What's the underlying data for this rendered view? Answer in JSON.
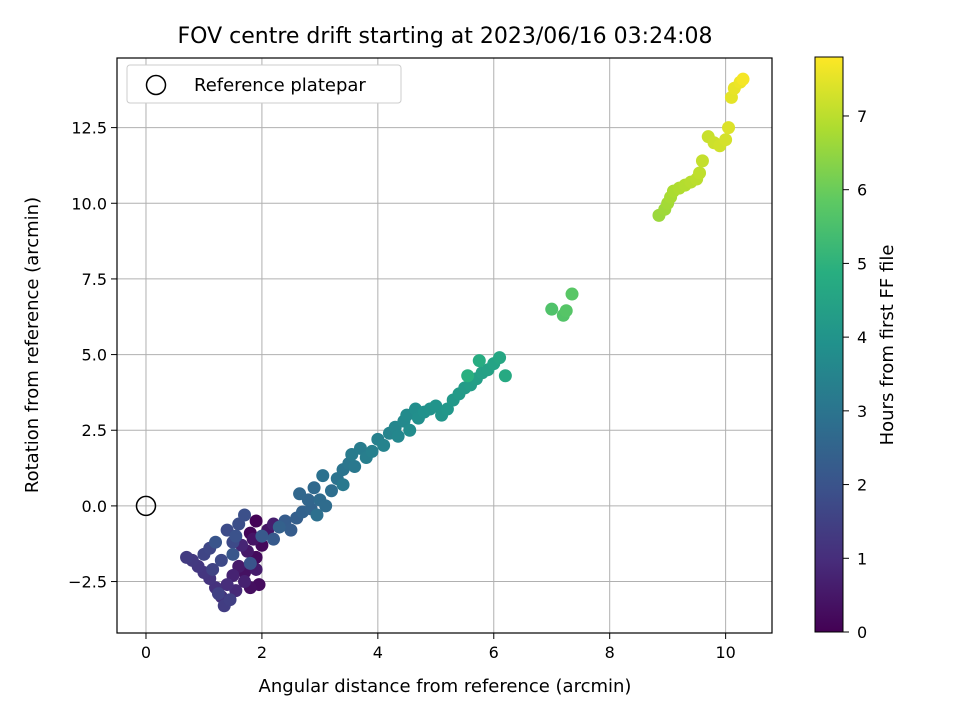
{
  "chart_data": {
    "type": "scatter",
    "title": "FOV centre drift starting at 2023/06/16 03:24:08",
    "xlabel": "Angular distance from reference (arcmin)",
    "ylabel": "Rotation from reference (arcmin)",
    "xlim": [
      -0.5,
      10.8
    ],
    "ylim": [
      -4.2,
      14.8
    ],
    "xticks": [
      0,
      2,
      4,
      6,
      8,
      10
    ],
    "xtick_labels": [
      "0",
      "2",
      "4",
      "6",
      "8",
      "10"
    ],
    "yticks": [
      -2.5,
      0,
      2.5,
      5,
      7.5,
      10,
      12.5
    ],
    "ytick_labels": [
      "−2.5",
      "0.0",
      "2.5",
      "5.0",
      "7.5",
      "10.0",
      "12.5"
    ],
    "grid": true,
    "colormap": "viridis",
    "colorbar": {
      "label": "Hours from first FF file",
      "range": [
        0,
        7.8
      ],
      "ticks": [
        0,
        1,
        2,
        3,
        4,
        5,
        6,
        7
      ],
      "tick_labels": [
        "0",
        "1",
        "2",
        "3",
        "4",
        "5",
        "6",
        "7"
      ]
    },
    "legend": {
      "placement": "top-left",
      "label": "Reference platepar"
    },
    "reference_point": {
      "x": 0,
      "y": 0
    },
    "series": [
      {
        "name": "drift",
        "points": [
          [
            1.9,
            -0.5,
            0.05
          ],
          [
            1.8,
            -0.9,
            0.1
          ],
          [
            2.0,
            -1.3,
            0.15
          ],
          [
            1.9,
            -1.7,
            0.2
          ],
          [
            1.95,
            -2.6,
            0.25
          ],
          [
            1.8,
            -2.7,
            0.3
          ],
          [
            1.7,
            -2.2,
            0.35
          ],
          [
            1.85,
            -1.1,
            0.4
          ],
          [
            2.1,
            -0.8,
            0.45
          ],
          [
            1.75,
            -1.5,
            0.5
          ],
          [
            1.6,
            -2.0,
            0.55
          ],
          [
            1.9,
            -2.1,
            0.6
          ],
          [
            2.2,
            -0.6,
            0.65
          ],
          [
            1.7,
            -2.5,
            0.7
          ],
          [
            1.5,
            -2.3,
            0.75
          ],
          [
            1.65,
            -1.3,
            0.8
          ],
          [
            1.55,
            -2.8,
            0.9
          ],
          [
            1.4,
            -2.6,
            1.0
          ],
          [
            1.3,
            -3.0,
            1.05
          ],
          [
            1.2,
            -2.7,
            1.1
          ],
          [
            1.1,
            -2.4,
            1.15
          ],
          [
            1.0,
            -2.2,
            1.2
          ],
          [
            0.9,
            -2.0,
            1.25
          ],
          [
            0.8,
            -1.8,
            1.3
          ],
          [
            0.7,
            -1.7,
            1.35
          ],
          [
            1.35,
            -3.3,
            1.4
          ],
          [
            1.45,
            -3.1,
            1.45
          ],
          [
            1.25,
            -2.9,
            1.5
          ],
          [
            1.15,
            -2.1,
            1.55
          ],
          [
            1.0,
            -1.6,
            1.6
          ],
          [
            1.1,
            -1.4,
            1.65
          ],
          [
            1.3,
            -1.8,
            1.7
          ],
          [
            1.5,
            -1.2,
            1.75
          ],
          [
            1.4,
            -0.8,
            1.8
          ],
          [
            1.6,
            -0.6,
            1.85
          ],
          [
            1.7,
            -0.3,
            1.9
          ],
          [
            1.55,
            -1.0,
            1.95
          ],
          [
            1.8,
            -1.9,
            2.0
          ],
          [
            1.2,
            -1.2,
            2.05
          ],
          [
            1.5,
            -1.6,
            2.1
          ],
          [
            2.0,
            -1.0,
            2.15
          ],
          [
            2.2,
            -1.1,
            2.2
          ],
          [
            2.4,
            -0.5,
            2.25
          ],
          [
            2.5,
            -0.8,
            2.3
          ],
          [
            2.6,
            -0.4,
            2.35
          ],
          [
            2.3,
            -0.7,
            2.4
          ],
          [
            2.7,
            -0.2,
            2.45
          ],
          [
            2.85,
            -0.1,
            2.5
          ],
          [
            2.8,
            0.2,
            2.55
          ],
          [
            2.65,
            0.4,
            2.6
          ],
          [
            2.9,
            0.6,
            2.65
          ],
          [
            3.0,
            0.2,
            2.7
          ],
          [
            3.1,
            0.0,
            2.75
          ],
          [
            3.2,
            0.5,
            2.8
          ],
          [
            2.95,
            -0.3,
            2.85
          ],
          [
            3.05,
            1.0,
            2.9
          ],
          [
            3.3,
            0.9,
            2.95
          ],
          [
            3.4,
            1.2,
            3.0
          ],
          [
            3.5,
            1.4,
            3.05
          ],
          [
            3.6,
            1.3,
            3.1
          ],
          [
            3.4,
            0.7,
            3.15
          ],
          [
            3.55,
            1.7,
            3.2
          ],
          [
            3.7,
            1.9,
            3.25
          ],
          [
            3.8,
            1.6,
            3.3
          ],
          [
            3.9,
            1.8,
            3.35
          ],
          [
            4.0,
            2.2,
            3.4
          ],
          [
            4.1,
            2.0,
            3.45
          ],
          [
            4.2,
            2.4,
            3.5
          ],
          [
            4.3,
            2.6,
            3.55
          ],
          [
            4.35,
            2.3,
            3.6
          ],
          [
            4.45,
            2.8,
            3.65
          ],
          [
            4.5,
            3.0,
            3.7
          ],
          [
            4.55,
            2.5,
            3.75
          ],
          [
            4.65,
            3.2,
            3.8
          ],
          [
            4.7,
            2.9,
            3.85
          ],
          [
            4.8,
            3.1,
            3.9
          ],
          [
            4.9,
            3.2,
            3.95
          ],
          [
            5.0,
            3.3,
            4.0
          ],
          [
            5.1,
            3.0,
            4.05
          ],
          [
            5.2,
            3.2,
            4.1
          ],
          [
            5.3,
            3.5,
            4.15
          ],
          [
            5.4,
            3.7,
            4.2
          ],
          [
            5.5,
            3.9,
            4.25
          ],
          [
            5.6,
            4.0,
            4.3
          ],
          [
            5.7,
            4.2,
            4.35
          ],
          [
            5.8,
            4.4,
            4.4
          ],
          [
            5.9,
            4.5,
            4.45
          ],
          [
            6.0,
            4.7,
            4.5
          ],
          [
            6.1,
            4.9,
            4.6
          ],
          [
            6.2,
            4.3,
            4.7
          ],
          [
            5.75,
            4.8,
            4.8
          ],
          [
            5.55,
            4.3,
            4.9
          ],
          [
            7.0,
            6.5,
            5.6
          ],
          [
            7.2,
            6.3,
            5.65
          ],
          [
            7.25,
            6.45,
            5.7
          ],
          [
            7.35,
            7.0,
            5.75
          ],
          [
            8.85,
            9.6,
            6.6
          ],
          [
            8.95,
            9.8,
            6.65
          ],
          [
            9.0,
            10.0,
            6.7
          ],
          [
            9.05,
            10.2,
            6.75
          ],
          [
            9.1,
            10.4,
            6.8
          ],
          [
            9.2,
            10.5,
            6.85
          ],
          [
            9.3,
            10.6,
            6.9
          ],
          [
            9.4,
            10.7,
            6.95
          ],
          [
            9.5,
            10.8,
            7.0
          ],
          [
            9.55,
            11.0,
            7.05
          ],
          [
            9.6,
            11.4,
            7.1
          ],
          [
            9.7,
            12.2,
            7.15
          ],
          [
            9.8,
            12.0,
            7.2
          ],
          [
            9.9,
            11.9,
            7.25
          ],
          [
            10.0,
            12.1,
            7.3
          ],
          [
            10.05,
            12.5,
            7.4
          ],
          [
            10.1,
            13.5,
            7.5
          ],
          [
            10.15,
            13.8,
            7.55
          ],
          [
            10.25,
            14.0,
            7.6
          ],
          [
            10.3,
            14.1,
            7.7
          ]
        ]
      }
    ]
  }
}
